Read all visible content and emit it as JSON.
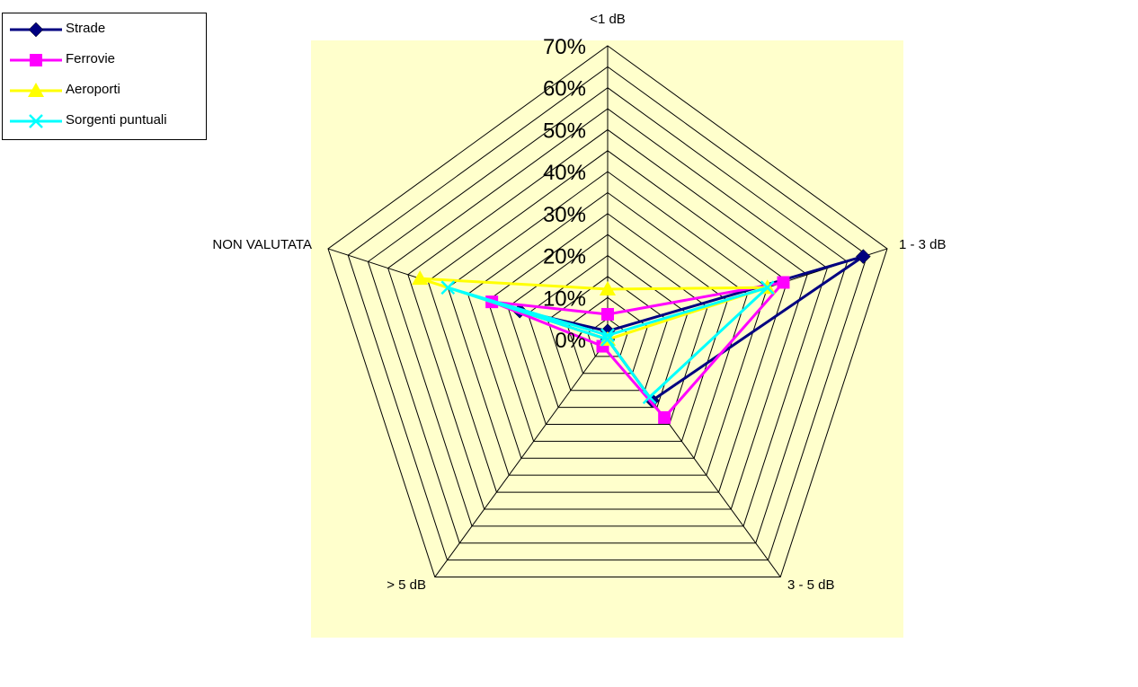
{
  "chart_data": {
    "type": "radar",
    "categories": [
      "<1 dB",
      "1 - 3 dB",
      "3 - 5 dB",
      "> 5 dB",
      "NON VALUTATA"
    ],
    "tick_labels": [
      "0%",
      "10%",
      "20%",
      "30%",
      "40%",
      "50%",
      "60%",
      "70%"
    ],
    "rlim": [
      0,
      0.7
    ],
    "grid": true,
    "legend_position": "top-left",
    "plot_background": "#FFFFCC",
    "series": [
      {
        "name": "Strade",
        "color": "#000080",
        "marker": "diamond",
        "values": [
          0.02,
          0.64,
          0.18,
          0.0,
          0.22
        ]
      },
      {
        "name": "Ferrovie",
        "color": "#FF00FF",
        "marker": "square",
        "values": [
          0.06,
          0.44,
          0.23,
          0.02,
          0.29
        ]
      },
      {
        "name": "Aeroporti",
        "color": "#FFFF00",
        "marker": "triangle",
        "values": [
          0.12,
          0.4,
          0.0,
          0.0,
          0.47
        ]
      },
      {
        "name": "Sorgenti puntuali",
        "color": "#00FFFF",
        "marker": "x",
        "values": [
          0.01,
          0.4,
          0.17,
          0.0,
          0.4
        ]
      }
    ]
  }
}
